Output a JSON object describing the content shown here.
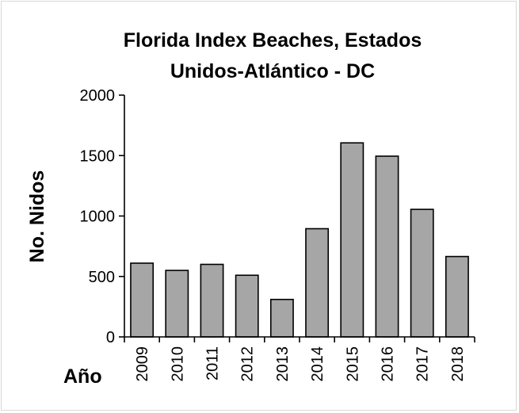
{
  "chart_data": {
    "type": "bar",
    "title_lines": [
      "Florida Index Beaches, Estados",
      "Unidos-Atlántico - DC"
    ],
    "xlabel": "Año",
    "ylabel": "No. Nidos",
    "categories": [
      "2009",
      "2010",
      "2011",
      "2012",
      "2013",
      "2014",
      "2015",
      "2016",
      "2017",
      "2018"
    ],
    "values": [
      610,
      550,
      600,
      510,
      310,
      895,
      1605,
      1495,
      1055,
      665
    ],
    "ylim": [
      0,
      2000
    ],
    "yticks": [
      0,
      500,
      1000,
      1500,
      2000
    ],
    "ytick_labels": [
      "0",
      "500",
      "1000",
      "1500",
      "2000"
    ],
    "grid": false,
    "legend": "none",
    "bar_color": "#a6a6a6",
    "bar_edge_color": "#000000"
  }
}
